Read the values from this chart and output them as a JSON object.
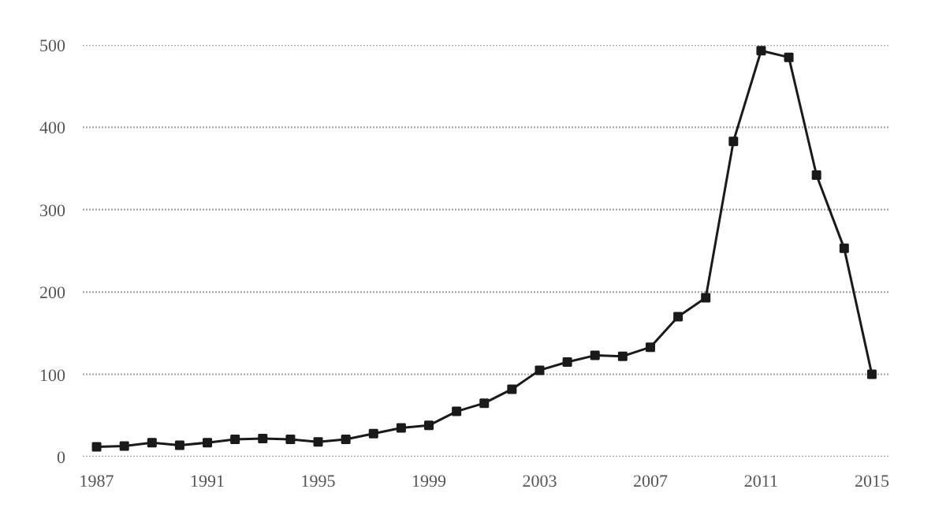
{
  "chart_data": {
    "type": "line",
    "x": [
      1987,
      1988,
      1989,
      1990,
      1991,
      1992,
      1993,
      1994,
      1995,
      1996,
      1997,
      1998,
      1999,
      2000,
      2001,
      2002,
      2003,
      2004,
      2005,
      2006,
      2007,
      2008,
      2009,
      2010,
      2011,
      2012,
      2013,
      2014,
      2015
    ],
    "series": [
      {
        "color": "#1a1a1a",
        "values": [
          12,
          13,
          17,
          14,
          17,
          21,
          22,
          21,
          18,
          21,
          28,
          35,
          38,
          55,
          65,
          82,
          105,
          115,
          123,
          122,
          133,
          170,
          193,
          383,
          493,
          485,
          342,
          253,
          100
        ]
      }
    ],
    "xlim": [
      1986.5,
      2015.6
    ],
    "xticks": [
      1987,
      1991,
      1995,
      1999,
      2003,
      2007,
      2011,
      2015
    ],
    "ylim": [
      0,
      500
    ],
    "yticks": [
      0,
      100,
      200,
      300,
      400,
      500
    ],
    "grid": "y",
    "marker": "square",
    "line_style": "solid"
  }
}
